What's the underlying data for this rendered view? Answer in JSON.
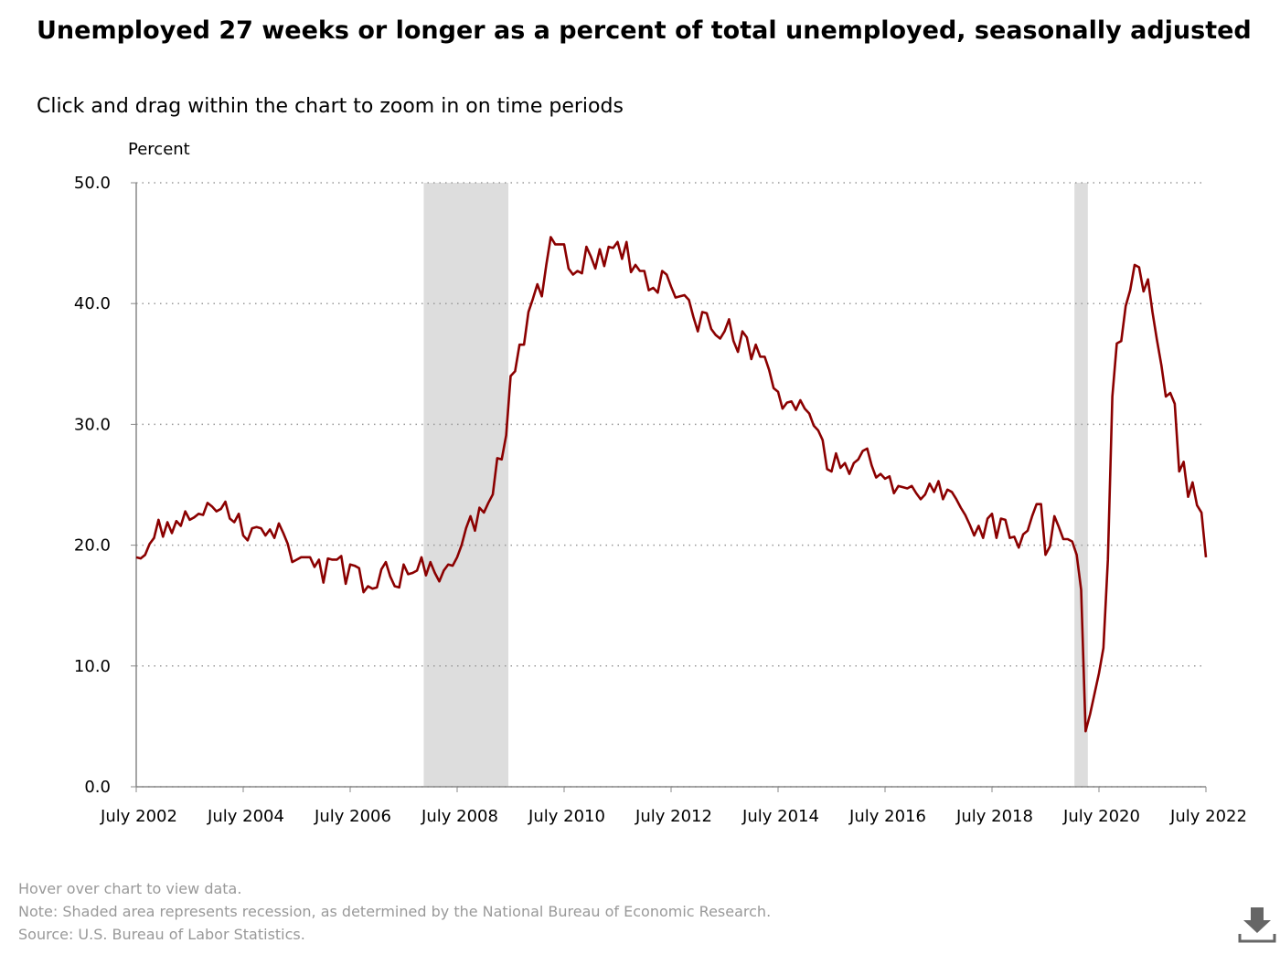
{
  "chart_data": {
    "type": "line",
    "title": "Unemployed 27 weeks or longer as a percent of total unemployed, seasonally adjusted",
    "subtitle": "Click and drag within the chart to zoom in on time periods",
    "y_label": "Percent",
    "notes": [
      "Hover over chart to view data.",
      "Note: Shaded area represents recession, as determined by the National Bureau of Economic Research.",
      "Source: U.S. Bureau of Labor Statistics."
    ],
    "ylim": [
      0,
      50
    ],
    "yticks": [
      {
        "value": 0,
        "label": "0.0"
      },
      {
        "value": 10,
        "label": "10.0"
      },
      {
        "value": 20,
        "label": "20.0"
      },
      {
        "value": 30,
        "label": "30.0"
      },
      {
        "value": 40,
        "label": "40.0"
      },
      {
        "value": 50,
        "label": "50.0"
      }
    ],
    "xlim": [
      "2002-07",
      "2022-07"
    ],
    "xticks": [
      {
        "value": "2002-07",
        "label": "July 2002"
      },
      {
        "value": "2004-07",
        "label": "July 2004"
      },
      {
        "value": "2006-07",
        "label": "July 2006"
      },
      {
        "value": "2008-07",
        "label": "July 2008"
      },
      {
        "value": "2010-07",
        "label": "July 2010"
      },
      {
        "value": "2012-07",
        "label": "July 2012"
      },
      {
        "value": "2014-07",
        "label": "July 2014"
      },
      {
        "value": "2016-07",
        "label": "July 2016"
      },
      {
        "value": "2018-07",
        "label": "July 2018"
      },
      {
        "value": "2020-07",
        "label": "July 2020"
      },
      {
        "value": "2022-07",
        "label": "July 2022"
      }
    ],
    "grid": true,
    "recessions": [
      [
        "2007-12",
        "2009-06"
      ],
      [
        "2020-02",
        "2020-04"
      ]
    ],
    "recession_color": "#dddddd",
    "x": [
      "2002-07",
      "2002-08",
      "2002-09",
      "2002-10",
      "2002-11",
      "2002-12",
      "2003-01",
      "2003-02",
      "2003-03",
      "2003-04",
      "2003-05",
      "2003-06",
      "2003-07",
      "2003-08",
      "2003-09",
      "2003-10",
      "2003-11",
      "2003-12",
      "2004-01",
      "2004-02",
      "2004-03",
      "2004-04",
      "2004-05",
      "2004-06",
      "2004-07",
      "2004-08",
      "2004-09",
      "2004-10",
      "2004-11",
      "2004-12",
      "2005-01",
      "2005-02",
      "2005-03",
      "2005-04",
      "2005-05",
      "2005-06",
      "2005-07",
      "2005-08",
      "2005-09",
      "2005-10",
      "2005-11",
      "2005-12",
      "2006-01",
      "2006-02",
      "2006-03",
      "2006-04",
      "2006-05",
      "2006-06",
      "2006-07",
      "2006-08",
      "2006-09",
      "2006-10",
      "2006-11",
      "2006-12",
      "2007-01",
      "2007-02",
      "2007-03",
      "2007-04",
      "2007-05",
      "2007-06",
      "2007-07",
      "2007-08",
      "2007-09",
      "2007-10",
      "2007-11",
      "2007-12",
      "2008-01",
      "2008-02",
      "2008-03",
      "2008-04",
      "2008-05",
      "2008-06",
      "2008-07",
      "2008-08",
      "2008-09",
      "2008-10",
      "2008-11",
      "2008-12",
      "2009-01",
      "2009-02",
      "2009-03",
      "2009-04",
      "2009-05",
      "2009-06",
      "2009-07",
      "2009-08",
      "2009-09",
      "2009-10",
      "2009-11",
      "2009-12",
      "2010-01",
      "2010-02",
      "2010-03",
      "2010-04",
      "2010-05",
      "2010-06",
      "2010-07",
      "2010-08",
      "2010-09",
      "2010-10",
      "2010-11",
      "2010-12",
      "2011-01",
      "2011-02",
      "2011-03",
      "2011-04",
      "2011-05",
      "2011-06",
      "2011-07",
      "2011-08",
      "2011-09",
      "2011-10",
      "2011-11",
      "2011-12",
      "2012-01",
      "2012-02",
      "2012-03",
      "2012-04",
      "2012-05",
      "2012-06",
      "2012-07",
      "2012-08",
      "2012-09",
      "2012-10",
      "2012-11",
      "2012-12",
      "2013-01",
      "2013-02",
      "2013-03",
      "2013-04",
      "2013-05",
      "2013-06",
      "2013-07",
      "2013-08",
      "2013-09",
      "2013-10",
      "2013-11",
      "2013-12",
      "2014-01",
      "2014-02",
      "2014-03",
      "2014-04",
      "2014-05",
      "2014-06",
      "2014-07",
      "2014-08",
      "2014-09",
      "2014-10",
      "2014-11",
      "2014-12",
      "2015-01",
      "2015-02",
      "2015-03",
      "2015-04",
      "2015-05",
      "2015-06",
      "2015-07",
      "2015-08",
      "2015-09",
      "2015-10",
      "2015-11",
      "2015-12",
      "2016-01",
      "2016-02",
      "2016-03",
      "2016-04",
      "2016-05",
      "2016-06",
      "2016-07",
      "2016-08",
      "2016-09",
      "2016-10",
      "2016-11",
      "2016-12",
      "2017-01",
      "2017-02",
      "2017-03",
      "2017-04",
      "2017-05",
      "2017-06",
      "2017-07",
      "2017-08",
      "2017-09",
      "2017-10",
      "2017-11",
      "2017-12",
      "2018-01",
      "2018-02",
      "2018-03",
      "2018-04",
      "2018-05",
      "2018-06",
      "2018-07",
      "2018-08",
      "2018-09",
      "2018-10",
      "2018-11",
      "2018-12",
      "2019-01",
      "2019-02",
      "2019-03",
      "2019-04",
      "2019-05",
      "2019-06",
      "2019-07",
      "2019-08",
      "2019-09",
      "2019-10",
      "2019-11",
      "2019-12",
      "2020-01",
      "2020-02",
      "2020-03",
      "2020-04",
      "2020-05",
      "2020-06",
      "2020-07",
      "2020-08",
      "2020-09",
      "2020-10",
      "2020-11",
      "2020-12",
      "2021-01",
      "2021-02",
      "2021-03",
      "2021-04",
      "2021-05",
      "2021-06",
      "2021-07",
      "2021-08",
      "2021-09",
      "2021-10",
      "2021-11",
      "2021-12",
      "2022-01",
      "2022-02",
      "2022-03",
      "2022-04",
      "2022-05",
      "2022-06",
      "2022-07"
    ],
    "series": [
      {
        "name": "Percent",
        "color": "#8b0000",
        "values": [
          19.0,
          18.9,
          19.2,
          20.1,
          20.6,
          22.1,
          20.7,
          21.9,
          21.0,
          22.0,
          21.6,
          22.8,
          22.1,
          22.3,
          22.6,
          22.5,
          23.5,
          23.2,
          22.8,
          23.0,
          23.6,
          22.2,
          21.9,
          22.6,
          20.8,
          20.4,
          21.4,
          21.5,
          21.4,
          20.8,
          21.3,
          20.6,
          21.8,
          21.0,
          20.1,
          18.6,
          18.8,
          19.0,
          19.0,
          19.0,
          18.2,
          18.8,
          16.9,
          18.9,
          18.8,
          18.8,
          19.1,
          16.8,
          18.4,
          18.3,
          18.1,
          16.1,
          16.6,
          16.4,
          16.5,
          18.0,
          18.6,
          17.4,
          16.6,
          16.5,
          18.4,
          17.6,
          17.7,
          17.9,
          19.0,
          17.5,
          18.6,
          17.7,
          17.0,
          17.9,
          18.4,
          18.3,
          19.0,
          20.0,
          21.4,
          22.4,
          21.2,
          23.1,
          22.7,
          23.5,
          24.2,
          27.2,
          27.1,
          29.1,
          34.0,
          34.4,
          36.6,
          36.6,
          39.3,
          40.4,
          41.6,
          40.6,
          43.2,
          45.5,
          44.9,
          44.9,
          44.9,
          42.9,
          42.4,
          42.7,
          42.5,
          44.7,
          43.9,
          42.9,
          44.5,
          43.1,
          44.7,
          44.6,
          45.1,
          43.7,
          45.1,
          42.6,
          43.2,
          42.7,
          42.7,
          41.1,
          41.3,
          40.9,
          42.7,
          42.4,
          41.4,
          40.5,
          40.6,
          40.7,
          40.3,
          38.9,
          37.7,
          39.3,
          39.2,
          37.9,
          37.4,
          37.1,
          37.7,
          38.7,
          36.9,
          36.0,
          37.7,
          37.2,
          35.4,
          36.6,
          35.6,
          35.6,
          34.5,
          33.0,
          32.7,
          31.3,
          31.8,
          31.9,
          31.2,
          32.0,
          31.3,
          30.9,
          29.9,
          29.5,
          28.7,
          26.3,
          26.1,
          27.6,
          26.4,
          26.8,
          25.9,
          26.8,
          27.1,
          27.8,
          28.0,
          26.6,
          25.6,
          25.9,
          25.5,
          25.7,
          24.3,
          24.9,
          24.8,
          24.7,
          24.9,
          24.3,
          23.8,
          24.2,
          25.1,
          24.4,
          25.3,
          23.8,
          24.6,
          24.4,
          23.8,
          23.1,
          22.5,
          21.7,
          20.8,
          21.6,
          20.6,
          22.2,
          22.6,
          20.6,
          22.2,
          22.1,
          20.6,
          20.7,
          19.8,
          20.9,
          21.2,
          22.4,
          23.4,
          23.4,
          19.2,
          19.9,
          22.4,
          21.5,
          20.5,
          20.5,
          20.3,
          19.2,
          16.3,
          4.6,
          6.0,
          7.7,
          9.4,
          11.5,
          18.8,
          32.3,
          36.7,
          36.9,
          39.8,
          41.1,
          43.2,
          43.0,
          41.0,
          42.0,
          39.3,
          37.0,
          34.9,
          32.3,
          32.6,
          31.7,
          26.1,
          26.9,
          24.0,
          25.2,
          23.3,
          22.7,
          19.0
        ]
      }
    ]
  }
}
